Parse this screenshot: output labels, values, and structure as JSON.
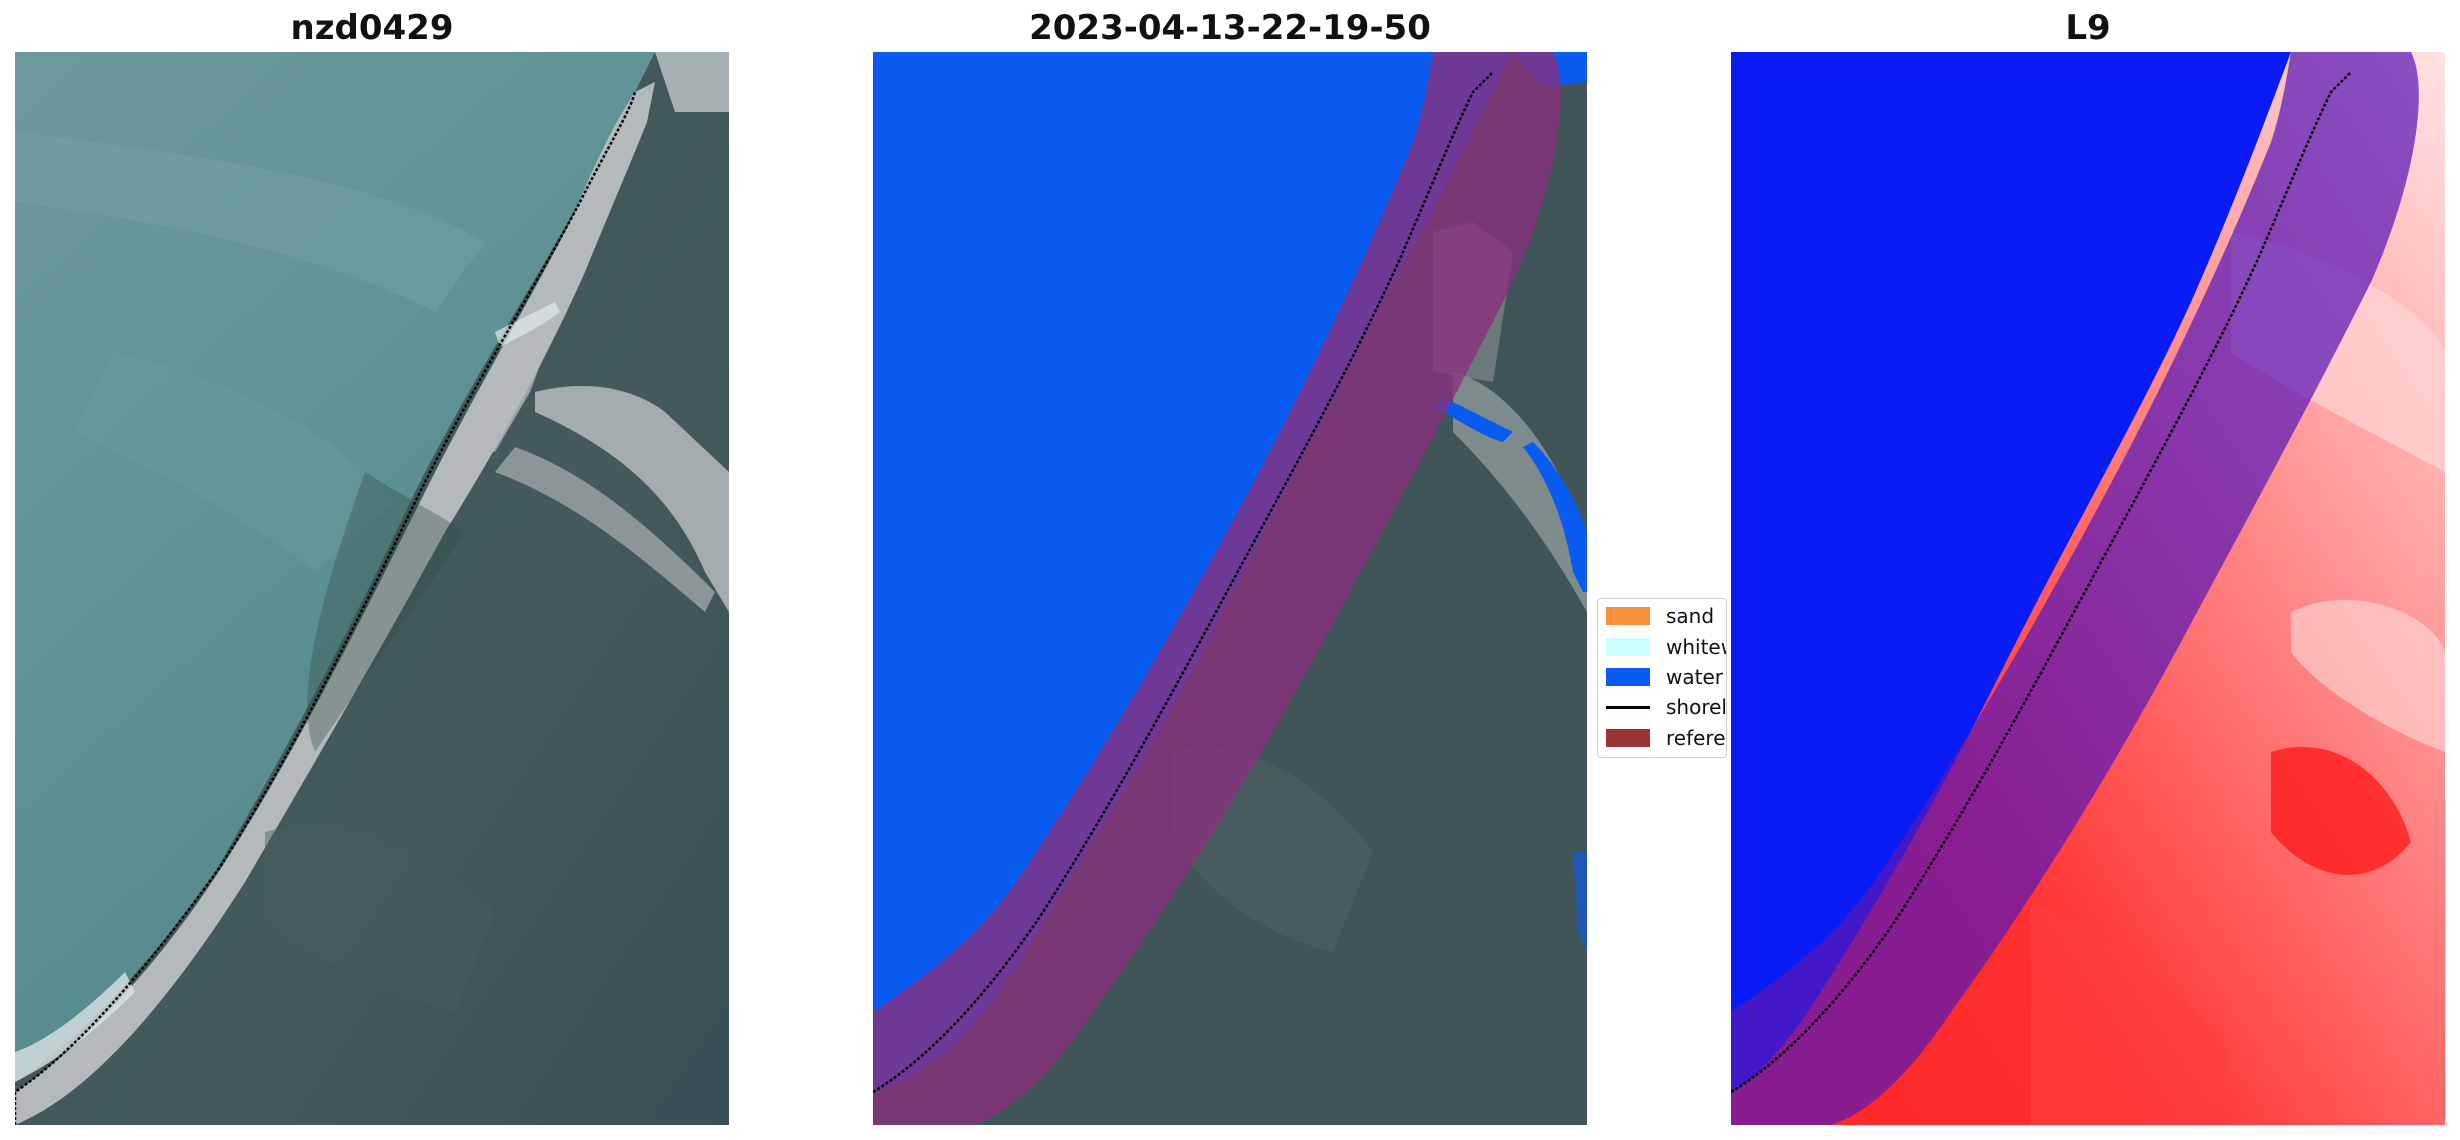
{
  "panels": [
    {
      "title": "nzd0429"
    },
    {
      "title": "2023-04-13-22-19-50"
    },
    {
      "title": "L9"
    }
  ],
  "legend": {
    "items": [
      {
        "label": "sand",
        "color": "#f6903c"
      },
      {
        "label": "whitew",
        "color": "#ccffff"
      },
      {
        "label": "water",
        "color": "#0a5cf0"
      },
      {
        "label": "shorel",
        "color": "#000000"
      },
      {
        "label": "referen",
        "color": "#9b3434"
      }
    ]
  },
  "colors": {
    "ocean": "#5d8f93",
    "forest": "#3c5258",
    "sand": "#b6bcbe",
    "water_class": "#0a5cf0",
    "reference_buffer": "#8a2f7e",
    "index_positive": "#ff1f1f",
    "index_negative": "#0a1cf5",
    "shoreline": "#000000"
  }
}
